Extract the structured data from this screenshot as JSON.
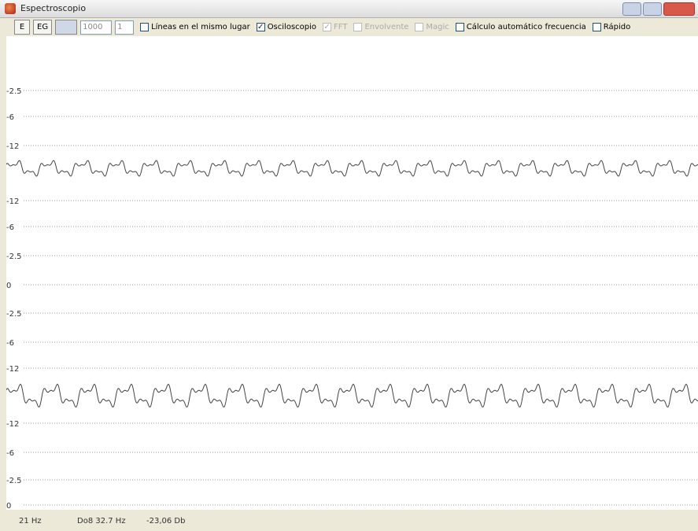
{
  "window": {
    "title": "Espectroscopio"
  },
  "toolbar": {
    "buttons": [
      "E",
      "EG"
    ],
    "inputs": [
      "1000",
      "1"
    ],
    "checkboxes": [
      {
        "label": "Líneas en el mismo lugar",
        "checked": false,
        "disabled": false
      },
      {
        "label": "Osciloscopio",
        "checked": true,
        "disabled": false
      },
      {
        "label": "FFT",
        "checked": true,
        "disabled": true
      },
      {
        "label": "Envolvente",
        "checked": false,
        "disabled": true
      },
      {
        "label": "Magic",
        "checked": false,
        "disabled": true
      },
      {
        "label": "Cálculo automático frecuencia",
        "checked": false,
        "disabled": false
      },
      {
        "label": "Rápido",
        "checked": false,
        "disabled": false
      }
    ]
  },
  "plot": {
    "labels": [
      "-2.5",
      "-6",
      "-12",
      "-12",
      "-6",
      "-2.5",
      "0",
      "-2.5",
      "-6",
      "-12",
      "-12",
      "-6",
      "-2.5",
      "0"
    ]
  },
  "status": [
    "21 Hz",
    "Do8 32.7 Hz",
    "-23,06 Db"
  ]
}
